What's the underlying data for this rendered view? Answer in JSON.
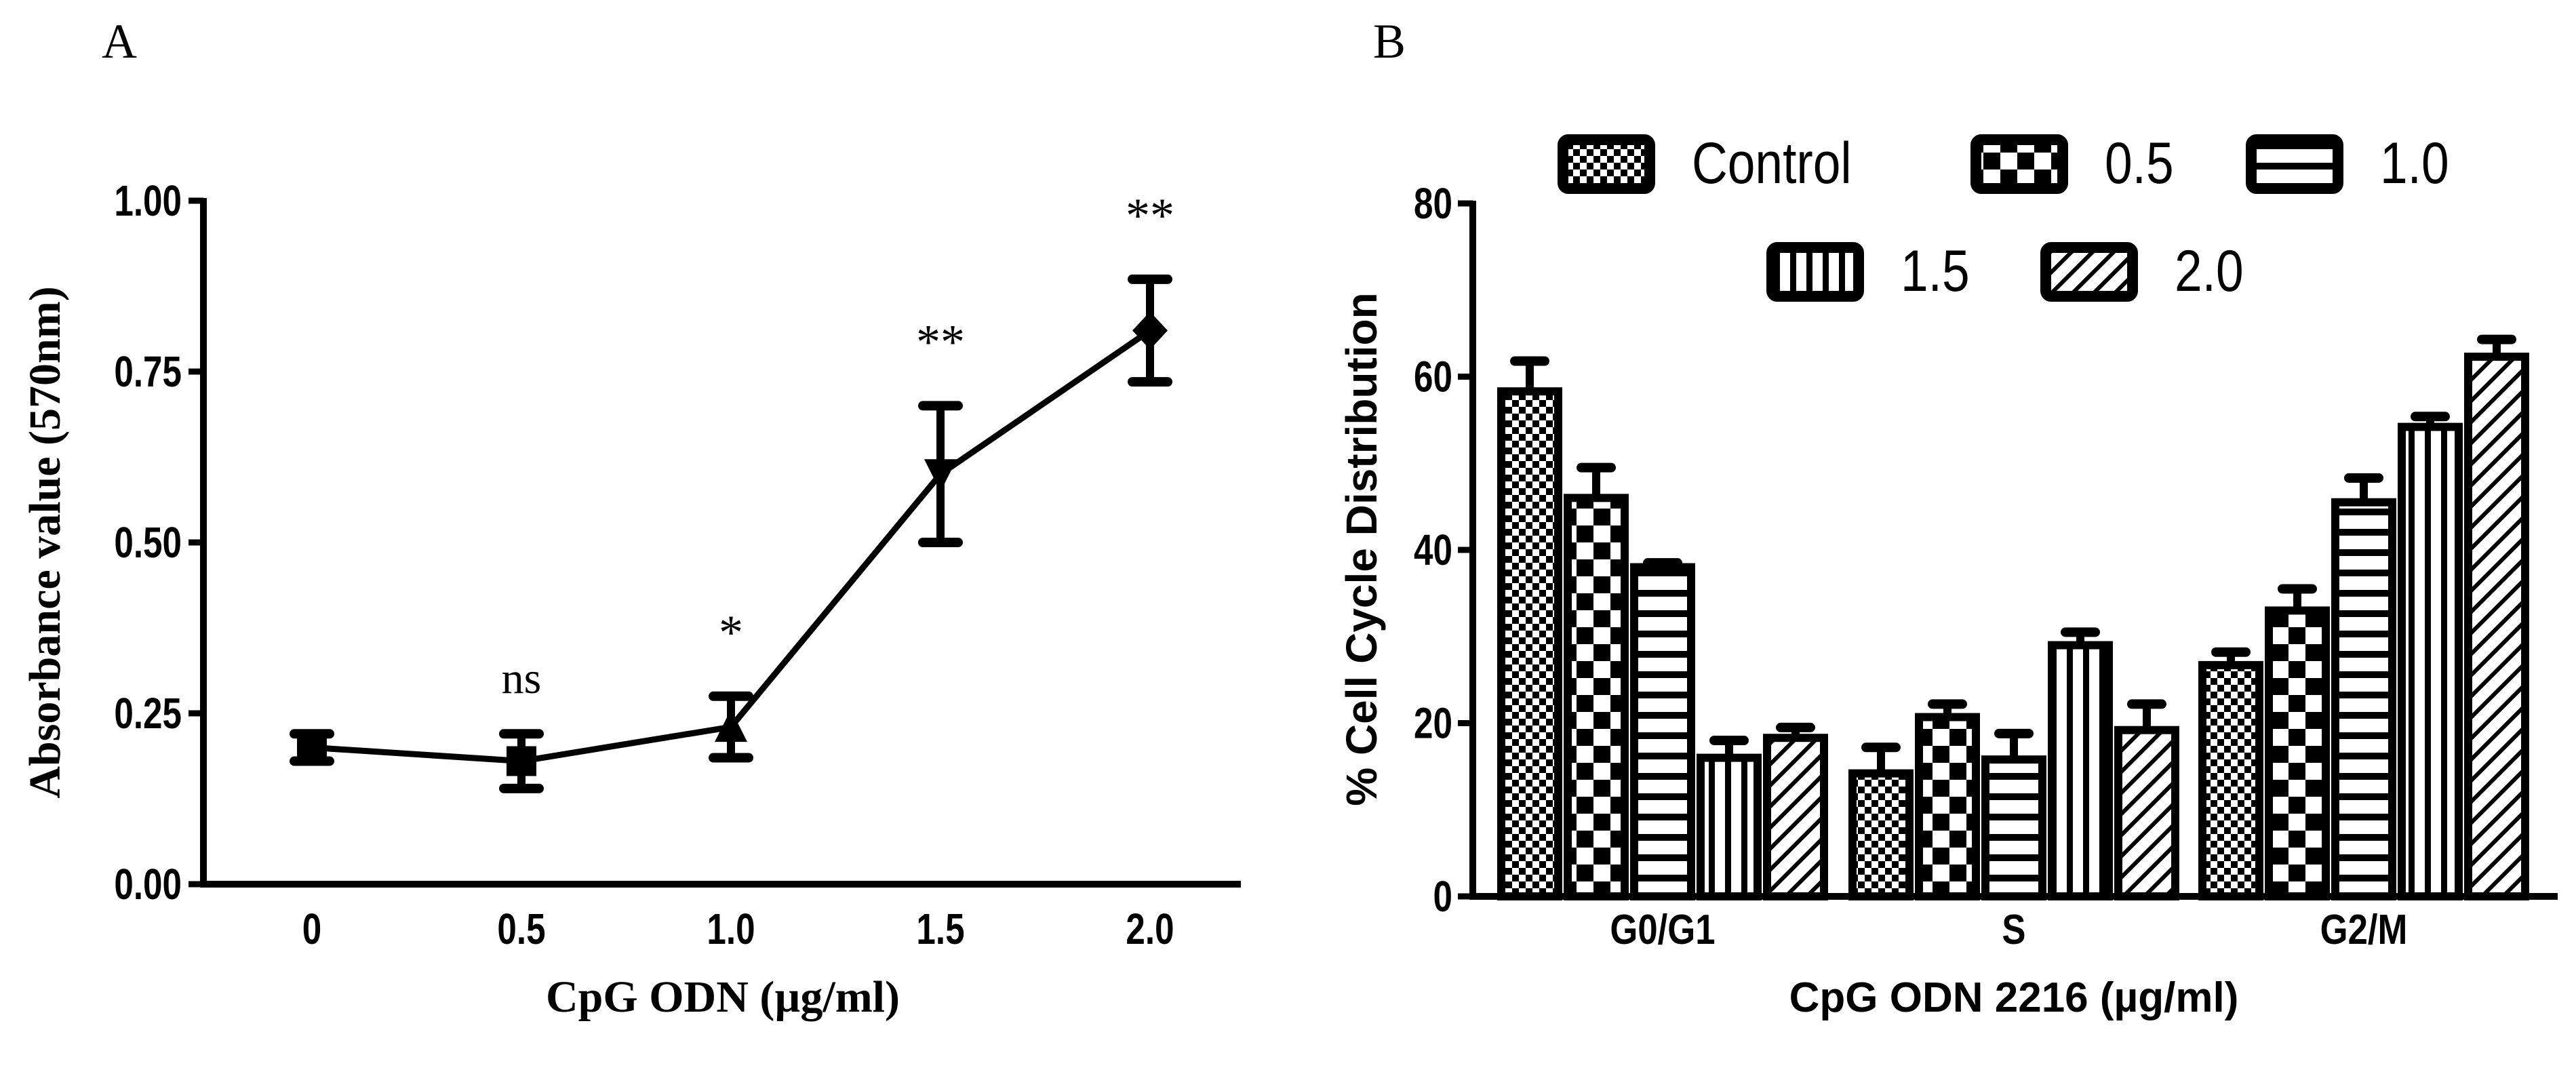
{
  "chart_data": [
    {
      "panel_label": "A",
      "type": "line",
      "xlabel": "CpG ODN (µg/ml)",
      "ylabel": "Absorbance value (570nm)",
      "categories": [
        "0",
        "0.5",
        "1.0",
        "1.5",
        "2.0"
      ],
      "x": [
        0,
        0.5,
        1.0,
        1.5,
        2.0
      ],
      "values": [
        0.2,
        0.18,
        0.23,
        0.6,
        0.81
      ],
      "errors": [
        0.02,
        0.04,
        0.045,
        0.1,
        0.075
      ],
      "markers": [
        "square",
        "square",
        "triangle-up",
        "triangle-down",
        "diamond"
      ],
      "annotations": [
        "",
        "ns",
        "*",
        "**",
        "**"
      ],
      "ylim": [
        0,
        1.0
      ],
      "yticks": [
        "0.00",
        "0.25",
        "0.50",
        "0.75",
        "1.00"
      ],
      "color": "#000000",
      "grid": false
    },
    {
      "panel_label": "B",
      "type": "bar",
      "xlabel": "CpG ODN 2216 (µg/ml)",
      "ylabel": "% Cell Cycle Distribution",
      "categories": [
        "G0/G1",
        "S",
        "G2/M"
      ],
      "series": [
        {
          "name": "Control",
          "pattern": "fine-checker",
          "values": [
            58.3,
            14.2,
            26.7
          ],
          "errors": [
            3.5,
            3.0,
            1.5
          ]
        },
        {
          "name": "0.5",
          "pattern": "large-checker",
          "values": [
            46.0,
            20.7,
            33.0
          ],
          "errors": [
            3.5,
            1.5,
            2.5
          ]
        },
        {
          "name": "1.0",
          "pattern": "horizontal-stripes",
          "values": [
            38.0,
            15.8,
            45.5
          ],
          "errors": [
            0.5,
            3.0,
            2.8
          ]
        },
        {
          "name": "1.5",
          "pattern": "vertical-stripes",
          "values": [
            16.0,
            29.0,
            54.2
          ],
          "errors": [
            2.0,
            1.5,
            1.2
          ]
        },
        {
          "name": "2.0",
          "pattern": "diagonal-hatch",
          "values": [
            18.3,
            19.2,
            62.3
          ],
          "errors": [
            1.2,
            3.0,
            2.0
          ]
        }
      ],
      "ylim": [
        0,
        80
      ],
      "yticks": [
        "0",
        "20",
        "40",
        "60",
        "80"
      ],
      "legend_placement": "top",
      "grid": false
    }
  ]
}
